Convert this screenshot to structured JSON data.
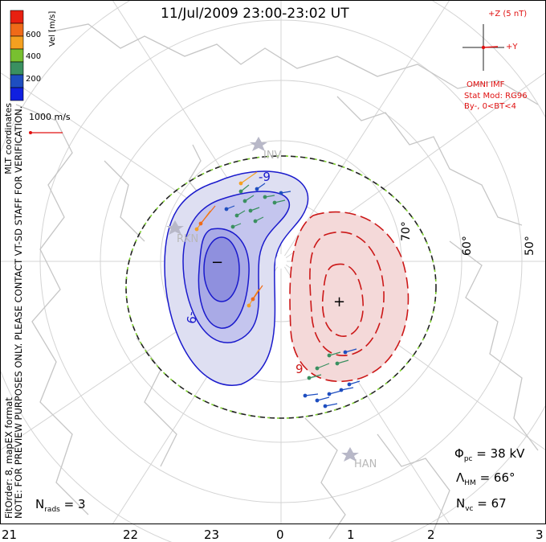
{
  "title": "11/Jul/2009 23:00-23:02 UT",
  "colorbar": {
    "label": "Vel [m/s]",
    "ticks": [
      "600",
      "400",
      "200"
    ],
    "colors": [
      "#e82010",
      "#f06a18",
      "#f5a020",
      "#78c030",
      "#3a9060",
      "#1e4ec0",
      "#1020e0"
    ]
  },
  "side_text": {
    "coords": "MLT coordinates",
    "note": "NOTE: FOR PREVIEW PURPOSES ONLY. PLEASE CONTACT VT-SD STAFF FOR VERIFICATION.",
    "fit": "FitOrder: 8, mapEX format"
  },
  "vector_scale": "1000 m/s",
  "imf": {
    "z_label": "+Z (5 nT)",
    "y_label": "+Y",
    "source": "OMNI IMF",
    "model": "Stat Mod: RG96",
    "condition": "By-, 0<BT<4"
  },
  "latitudes": [
    "70°",
    "60°",
    "50°"
  ],
  "mlt_labels": [
    "21",
    "22",
    "23",
    "0",
    "1",
    "2",
    "3"
  ],
  "radars": [
    "INV",
    "RKN",
    "HAN"
  ],
  "potential_labels": {
    "neg_contour": "-9",
    "neg_contour2": "-9",
    "pos_contour": "9",
    "min": "−",
    "max": "+"
  },
  "stats": {
    "phi_sym": "Φ",
    "phi_sub": "pc",
    "phi_val": "= 38 kV",
    "lam_sym": "Λ",
    "lam_sub": "HM",
    "lam_val": "= 66°",
    "nvc_sym": "N",
    "nvc_sub": "vc",
    "nvc_val": "= 67",
    "nrads_sym": "N",
    "nrads_sub": "rads",
    "nrads_val": "= 3"
  },
  "colors": {
    "neg": "#1a1acc",
    "pos": "#cc1818",
    "boundary": "#7fd030",
    "grid": "#cfcfcf",
    "coast": "#c9c9c9"
  }
}
